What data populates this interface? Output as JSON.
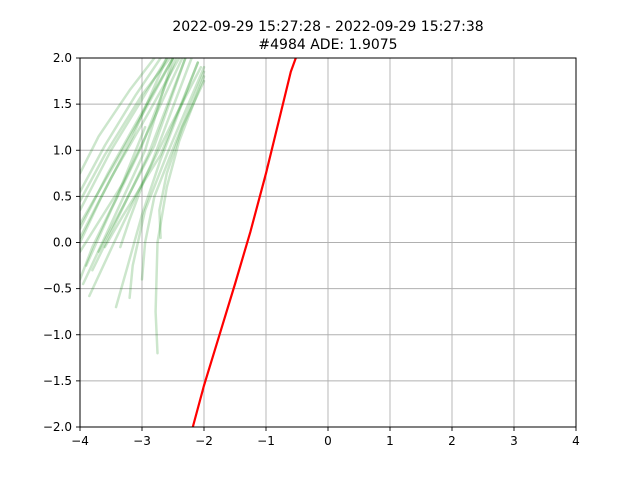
{
  "chart_data": {
    "type": "line",
    "title": "2022-09-29 15:27:28 - 2022-09-29 15:27:38",
    "subtitle": "#4984 ADE: 1.9075",
    "xlabel": "",
    "ylabel": "",
    "xlim": [
      -4,
      4
    ],
    "ylim": [
      -2,
      2
    ],
    "grid": true,
    "xticks": [
      -4,
      -3,
      -2,
      -1,
      0,
      1,
      2,
      3,
      4
    ],
    "yticks": [
      -2.0,
      -1.5,
      -1.0,
      -0.5,
      0.0,
      0.5,
      1.0,
      1.5,
      2.0
    ],
    "xtick_labels": [
      "−4",
      "−3",
      "−2",
      "−1",
      "0",
      "1",
      "2",
      "3",
      "4"
    ],
    "ytick_labels": [
      "−2.0",
      "−1.5",
      "−1.0",
      "−0.5",
      "0.0",
      "0.5",
      "1.0",
      "1.5",
      "2.0"
    ],
    "colors": {
      "predictions": "#008000",
      "ground_truth": "#ff0000"
    },
    "series": [
      {
        "role": "ground_truth",
        "x": [
          -2.18,
          -2.0,
          -1.75,
          -1.5,
          -1.25,
          -1.0,
          -0.8,
          -0.6,
          -0.52
        ],
        "y": [
          -2.0,
          -1.55,
          -1.0,
          -0.45,
          0.12,
          0.75,
          1.3,
          1.85,
          2.0
        ]
      },
      {
        "role": "prediction",
        "x": [
          -4.0,
          -3.5,
          -3.0,
          -2.6
        ],
        "y": [
          0.35,
          1.0,
          1.55,
          2.0
        ]
      },
      {
        "role": "prediction",
        "x": [
          -4.0,
          -3.6,
          -3.1,
          -2.7
        ],
        "y": [
          0.55,
          1.05,
          1.6,
          2.0
        ]
      },
      {
        "role": "prediction",
        "x": [
          -4.0,
          -3.4,
          -2.9,
          -2.5
        ],
        "y": [
          0.2,
          0.9,
          1.5,
          2.0
        ]
      },
      {
        "role": "prediction",
        "x": [
          -4.0,
          -3.7,
          -3.2,
          -2.8
        ],
        "y": [
          0.75,
          1.15,
          1.65,
          2.0
        ]
      },
      {
        "role": "prediction",
        "x": [
          -4.0,
          -3.5,
          -2.9,
          -2.4
        ],
        "y": [
          0.05,
          0.7,
          1.4,
          2.0
        ]
      },
      {
        "role": "prediction",
        "x": [
          -4.0,
          -3.3,
          -2.8,
          -2.35
        ],
        "y": [
          -0.1,
          0.65,
          1.35,
          2.0
        ]
      },
      {
        "role": "prediction",
        "x": [
          -4.0,
          -3.6,
          -3.0,
          -2.55
        ],
        "y": [
          0.45,
          0.95,
          1.6,
          2.0
        ]
      },
      {
        "role": "prediction",
        "x": [
          -3.9,
          -3.5,
          -3.0,
          -2.45
        ],
        "y": [
          -0.25,
          0.35,
          1.05,
          2.0
        ]
      },
      {
        "role": "prediction",
        "x": [
          -3.8,
          -3.4,
          -2.9,
          -2.3
        ],
        "y": [
          -0.3,
          0.25,
          0.95,
          2.0
        ]
      },
      {
        "role": "prediction",
        "x": [
          -3.95,
          -3.5,
          -2.95,
          -2.5
        ],
        "y": [
          -0.45,
          0.2,
          1.0,
          2.0
        ]
      },
      {
        "role": "prediction",
        "x": [
          -3.85,
          -3.45,
          -2.85,
          -2.2
        ],
        "y": [
          -0.58,
          0.0,
          0.85,
          2.0
        ]
      },
      {
        "role": "prediction",
        "x": [
          -3.7,
          -3.3,
          -2.8,
          -2.3
        ],
        "y": [
          -0.1,
          0.4,
          1.05,
          2.0
        ]
      },
      {
        "role": "prediction",
        "x": [
          -3.6,
          -3.3,
          -2.7,
          -2.1
        ],
        "y": [
          -0.05,
          0.3,
          0.95,
          1.95
        ]
      },
      {
        "role": "prediction",
        "x": [
          -3.42,
          -3.25,
          -3.0,
          -2.7,
          -2.1
        ],
        "y": [
          -0.7,
          -0.3,
          0.3,
          0.9,
          1.95
        ]
      },
      {
        "role": "prediction",
        "x": [
          -3.2,
          -3.15,
          -2.95,
          -2.6,
          -2.0
        ],
        "y": [
          -0.6,
          -0.25,
          0.35,
          0.95,
          1.9
        ]
      },
      {
        "role": "prediction",
        "x": [
          -3.0,
          -2.95,
          -2.8,
          -2.45,
          -2.0
        ],
        "y": [
          -0.4,
          0.0,
          0.5,
          1.1,
          1.85
        ]
      },
      {
        "role": "prediction",
        "x": [
          -3.35,
          -3.2,
          -2.95,
          -2.55,
          -2.05
        ],
        "y": [
          -0.05,
          0.25,
          0.7,
          1.25,
          1.9
        ]
      },
      {
        "role": "prediction",
        "x": [
          -2.75,
          -2.78,
          -2.75,
          -2.6,
          -2.4,
          -2.0
        ],
        "y": [
          -1.2,
          -0.75,
          0.0,
          0.6,
          1.1,
          1.8
        ]
      },
      {
        "role": "prediction",
        "x": [
          -2.7,
          -2.72,
          -2.6,
          -2.35,
          -2.0
        ],
        "y": [
          0.05,
          0.35,
          0.75,
          1.25,
          1.75
        ]
      },
      {
        "role": "prediction",
        "x": [
          -4.0,
          -3.8,
          -3.4,
          -2.95
        ],
        "y": [
          -0.4,
          -0.05,
          0.5,
          1.25
        ]
      },
      {
        "role": "prediction",
        "x": [
          -4.0,
          -3.65,
          -3.15,
          -2.6
        ],
        "y": [
          0.0,
          0.5,
          1.15,
          2.0
        ]
      },
      {
        "role": "prediction",
        "x": [
          -4.0,
          -3.55,
          -3.05,
          -2.5
        ],
        "y": [
          0.15,
          0.75,
          1.35,
          2.0
        ]
      }
    ]
  }
}
